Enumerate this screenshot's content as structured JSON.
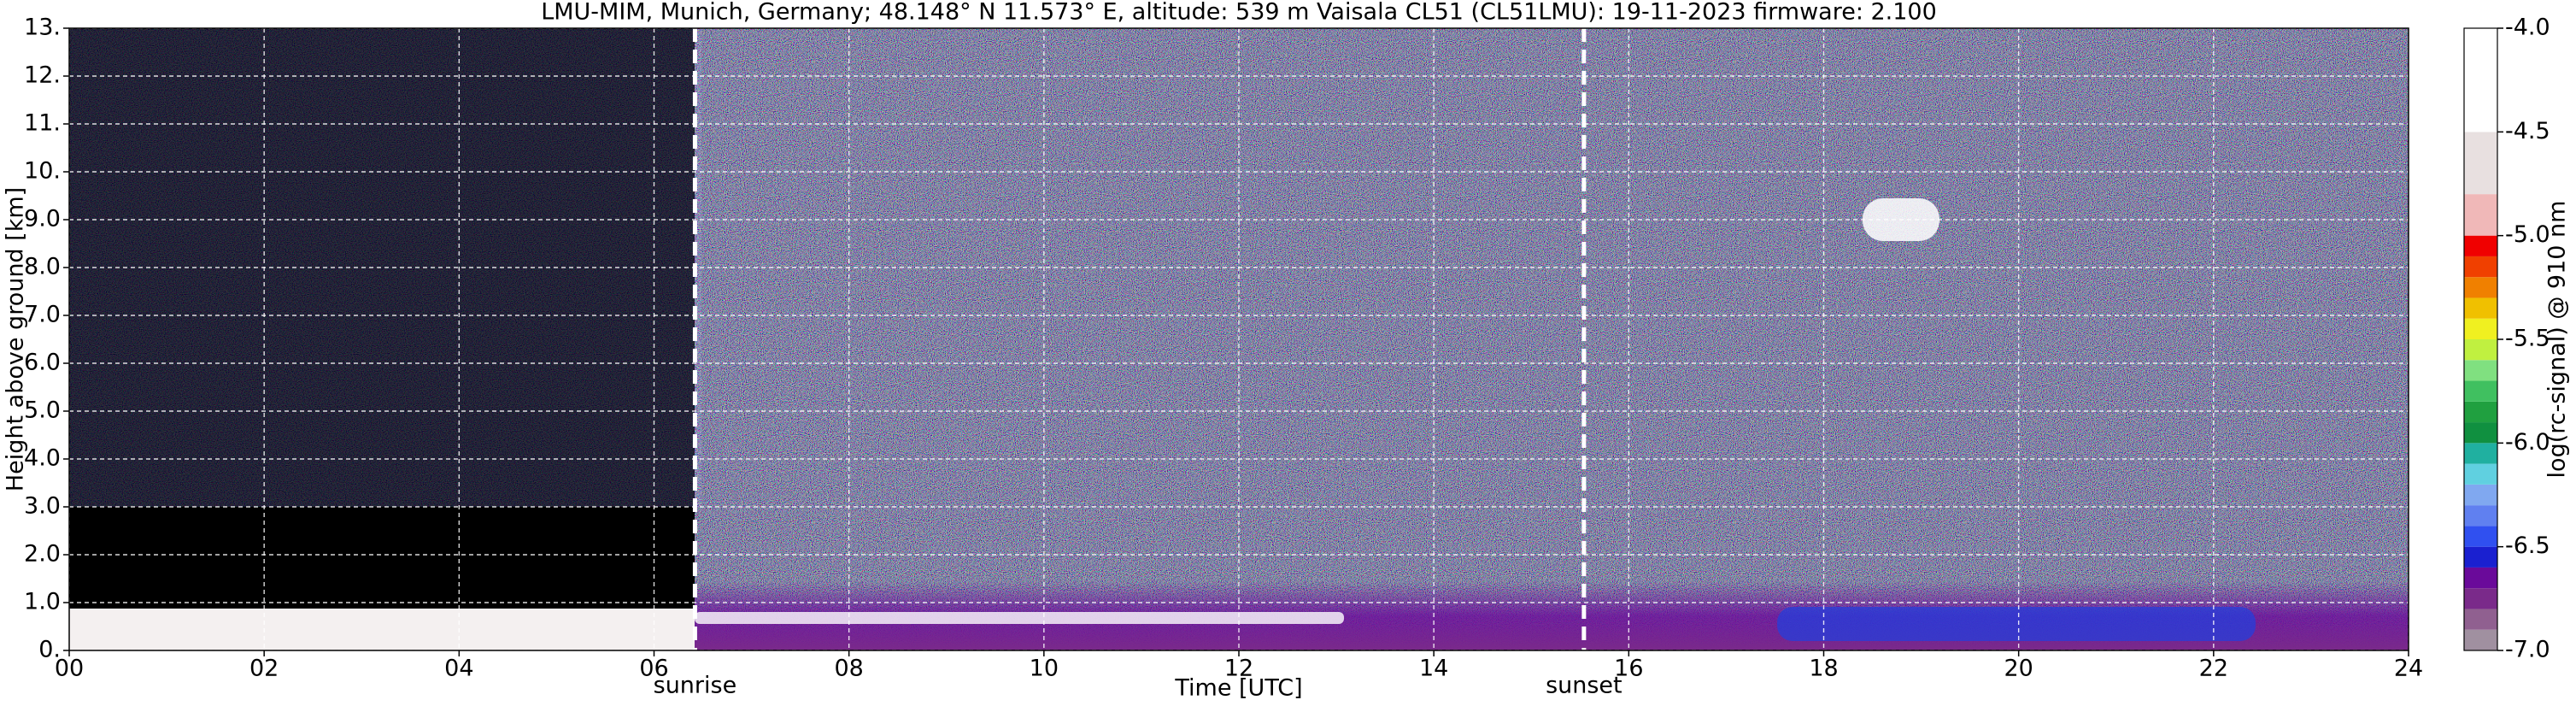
{
  "chart_data": {
    "type": "heatmap",
    "title": "LMU-MIM, Munich, Germany; 48.148° N 11.573° E, altitude: 539 m    Vaisala CL51 (CL51LMU): 19-11-2023    firmware: 2.100",
    "xlabel": "Time [UTC]",
    "ylabel": "Height above ground [km]",
    "xlim": [
      0,
      24
    ],
    "xticks": [
      {
        "value": 0,
        "label": "00"
      },
      {
        "value": 2,
        "label": "02"
      },
      {
        "value": 4,
        "label": "04"
      },
      {
        "value": 6,
        "label": "06"
      },
      {
        "value": 8,
        "label": "08"
      },
      10,
      12,
      14,
      16,
      18,
      20,
      22,
      24
    ],
    "ylim": [
      0,
      13
    ],
    "yticks": [
      {
        "value": 0,
        "label": "0."
      },
      {
        "value": 1,
        "label": "1.0"
      },
      {
        "value": 2,
        "label": "2.0"
      },
      {
        "value": 3,
        "label": "3.0"
      },
      {
        "value": 4,
        "label": "4.0"
      },
      {
        "value": 5,
        "label": "5.0"
      },
      {
        "value": 6,
        "label": "6.0"
      },
      {
        "value": 7,
        "label": "7.0"
      },
      {
        "value": 8,
        "label": "8.0"
      },
      {
        "value": 9,
        "label": "9.0"
      },
      {
        "value": 10,
        "label": "10."
      },
      {
        "value": 11,
        "label": "11."
      },
      {
        "value": 12,
        "label": "12."
      },
      {
        "value": 13,
        "label": "13."
      }
    ],
    "grid": true,
    "annotations": [
      {
        "text": "sunrise",
        "x": 6.42
      },
      {
        "text": "sunset",
        "x": 15.54
      }
    ],
    "colorbar": {
      "label": "log(rc-signal) @ 910 nm",
      "lim": [
        -7,
        -4
      ],
      "ticks": [
        {
          "value": -4,
          "label": "-4.0"
        },
        -4.5,
        {
          "value": -5,
          "label": "-5.0"
        },
        -5.5,
        {
          "value": -6,
          "label": "-6.0"
        },
        -6.5,
        {
          "value": -7,
          "label": "-7.0"
        }
      ],
      "bounds": [
        -7.0,
        -6.9,
        -6.8,
        -6.7,
        -6.6,
        -6.5,
        -6.4,
        -6.3,
        -6.2,
        -6.1,
        -6.0,
        -5.9,
        -5.8,
        -5.7,
        -5.6,
        -5.5,
        -5.4,
        -5.3,
        -5.2,
        -5.1,
        -5.0,
        -4.8,
        -4.5,
        -4.0
      ],
      "colors": [
        "#a090a0",
        "#906090",
        "#7a2a8a",
        "#6a0a9a",
        "#1a20d0",
        "#3050f0",
        "#6080f0",
        "#80a8f0",
        "#60d0e0",
        "#20b0a0",
        "#109040",
        "#20a040",
        "#40c060",
        "#80e080",
        "#c0f040",
        "#f0f020",
        "#f0c000",
        "#f08000",
        "#f04000",
        "#f00000",
        "#f0b8b8",
        "#e8e0e0",
        "#ffffff"
      ]
    }
  }
}
